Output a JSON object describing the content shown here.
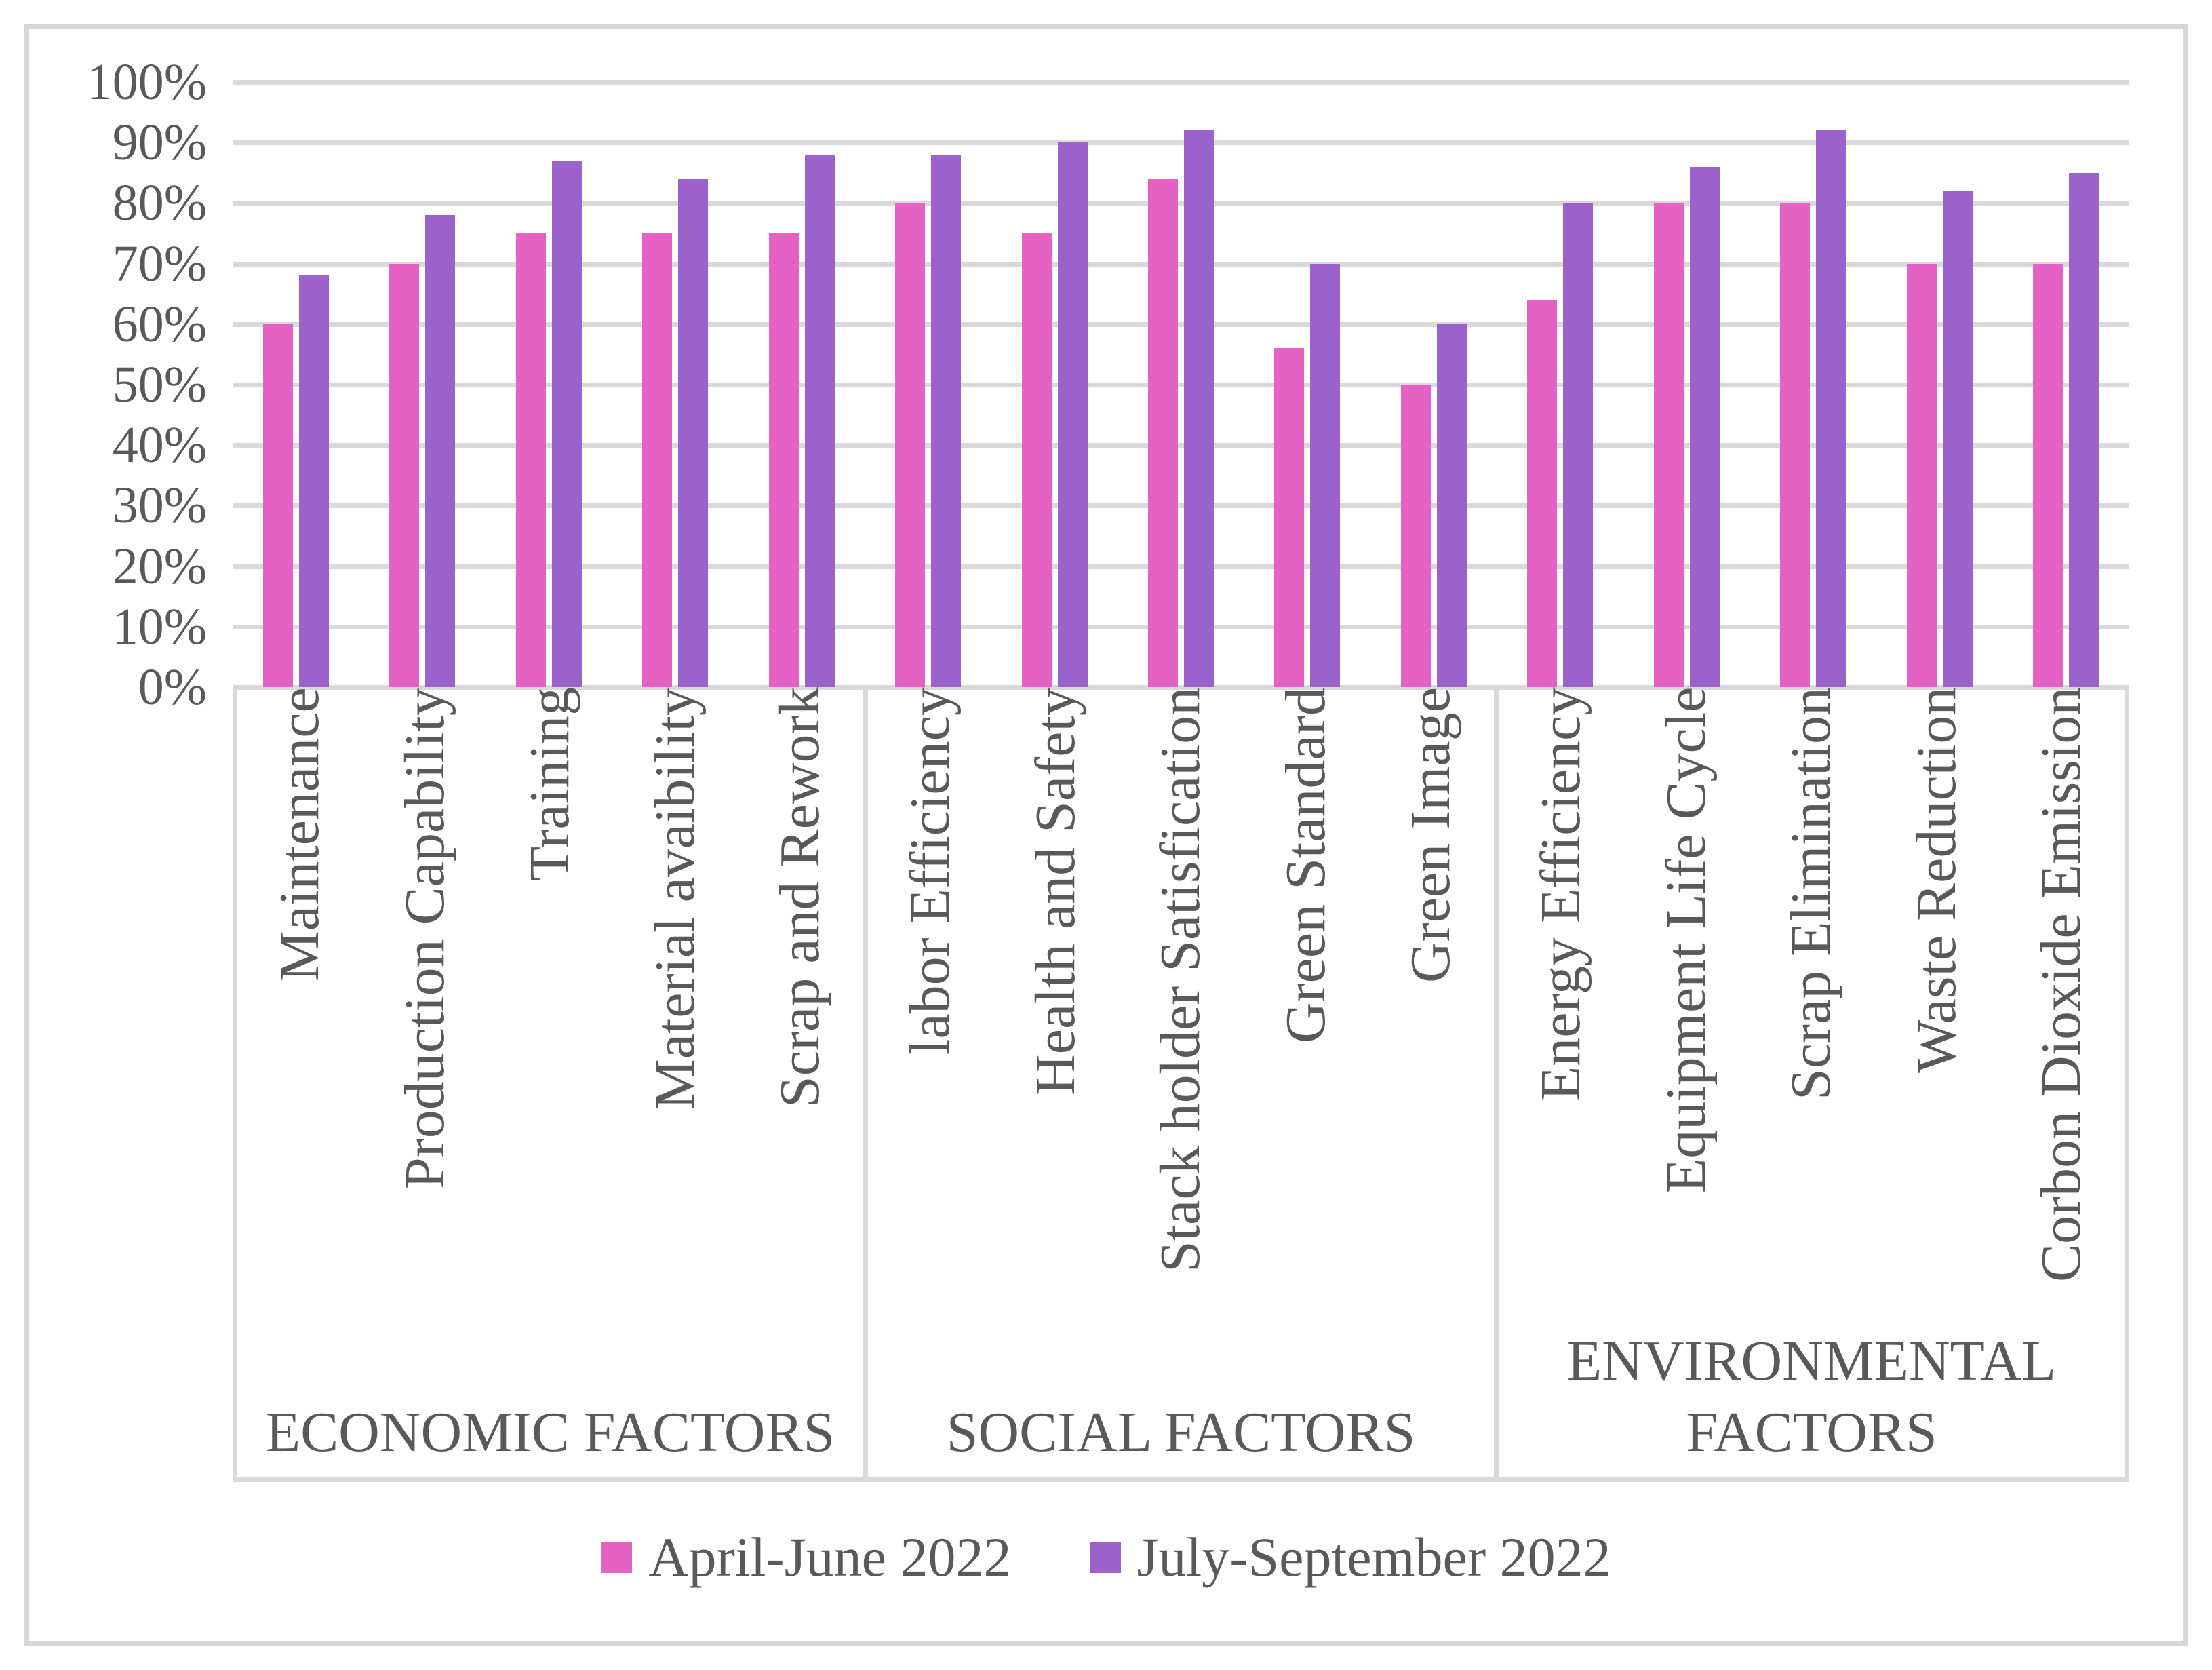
{
  "chart_data": {
    "type": "bar",
    "title": "",
    "ylabel": "",
    "xlabel": "",
    "ylim": [
      0,
      100
    ],
    "y_tick_step": 10,
    "y_ticks": [
      "0%",
      "10%",
      "20%",
      "30%",
      "40%",
      "50%",
      "60%",
      "70%",
      "80%",
      "90%",
      "100%"
    ],
    "grid": true,
    "legend_position": "bottom",
    "categories": [
      "Maintenance",
      "Production Capability",
      "Training",
      "Material avaibility",
      "Scrap and Rework",
      "labor Efficiency",
      "Health and Safety",
      "Stack holder Satisfication",
      "Green Standard",
      "Green Image",
      "Energy Efficiency",
      "Equipment Life Cycle",
      "Scrap Elimination",
      "Waste Reduction",
      "Corbon Dioxide Emission"
    ],
    "groups": [
      {
        "label": "ECONOMIC FACTORS",
        "span": 5
      },
      {
        "label": "SOCIAL FACTORS",
        "span": 5
      },
      {
        "label": "ENVIRONMENTAL FACTORS",
        "span": 5
      }
    ],
    "series": [
      {
        "name": "April-June 2022",
        "color": "#E661C4",
        "values": [
          60,
          70,
          75,
          75,
          75,
          80,
          75,
          84,
          56,
          50,
          64,
          80,
          80,
          70,
          70
        ]
      },
      {
        "name": "July-September 2022",
        "color": "#9C62CB",
        "values": [
          68,
          78,
          87,
          84,
          88,
          88,
          90,
          92,
          70,
          60,
          80,
          86,
          92,
          82,
          85
        ]
      }
    ]
  },
  "colors": {
    "gridline": "#D9D9D9",
    "frame_border": "#D7D7D7",
    "axis_text": "#595959",
    "background": "#FFFFFF"
  }
}
